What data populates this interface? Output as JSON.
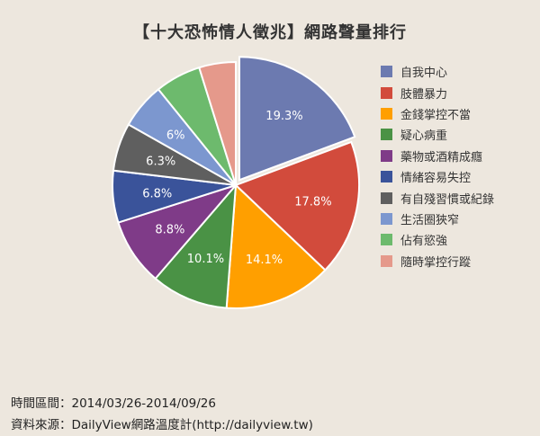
{
  "chart_data": {
    "type": "pie",
    "title": "【十大恐怖情人徵兆】網路聲量排行",
    "legend_position": "right",
    "slices": [
      {
        "label": "自我中心",
        "value": 19.3,
        "value_label": "19.3%",
        "color": "#6c7ab0",
        "exploded": true
      },
      {
        "label": "肢體暴力",
        "value": 17.8,
        "value_label": "17.8%",
        "color": "#d24b3c"
      },
      {
        "label": "金錢掌控不當",
        "value": 14.1,
        "value_label": "14.1%",
        "color": "#ff9f00"
      },
      {
        "label": "疑心病重",
        "value": 10.1,
        "value_label": "10.1%",
        "color": "#4a9245"
      },
      {
        "label": "藥物或酒精成癮",
        "value": 8.8,
        "value_label": "8.8%",
        "color": "#7f3b88"
      },
      {
        "label": "情緒容易失控",
        "value": 6.8,
        "value_label": "6.8%",
        "color": "#3a539a"
      },
      {
        "label": "有自殘習慣或紀錄",
        "value": 6.3,
        "value_label": "6.3%",
        "color": "#5f5f5f"
      },
      {
        "label": "生活圈狹窄",
        "value": 6.0,
        "value_label": "6%",
        "color": "#7c97cf"
      },
      {
        "label": "佔有慾強",
        "value": 6.0,
        "value_label": "",
        "color": "#6dba6d"
      },
      {
        "label": "隨時掌控行蹤",
        "value": 4.8,
        "value_label": "",
        "color": "#e5998b"
      }
    ]
  },
  "footer": {
    "period": "時間區間：2014/03/26-2014/09/26",
    "source": "資料來源：DailyView網路溫度計(http://dailyview.tw)"
  }
}
